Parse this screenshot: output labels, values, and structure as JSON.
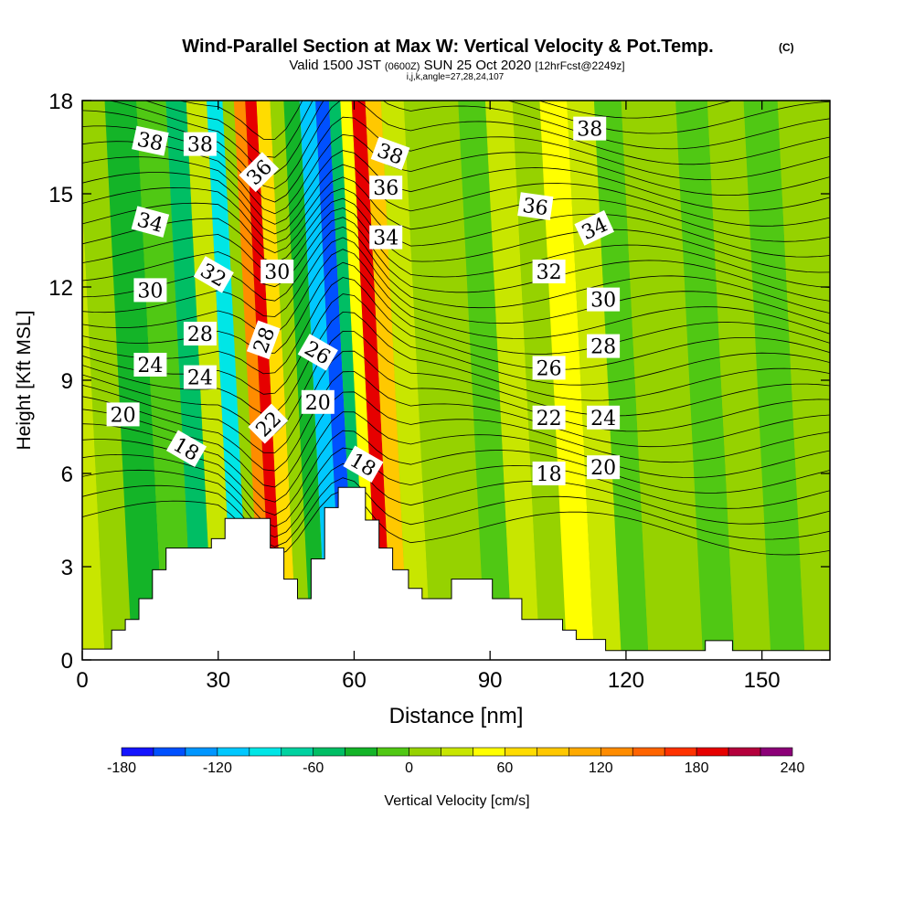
{
  "chart_data": {
    "type": "heatmap",
    "title": "Wind-Parallel Section at Max W: Vertical Velocity & Pot.Temp.",
    "title_unit": "(C)",
    "subtitle_main": "Valid 1500 JST",
    "subtitle_utc": "(0600Z)",
    "subtitle_date": "SUN 25 Oct 2020",
    "subtitle_fcst": "[12hrFcst@2249z]",
    "subtitle_line2": "i,j,k,angle=27,28,24,107",
    "xlabel": "Distance [nm]",
    "ylabel": "Height [Kft MSL]",
    "xlim": [
      0,
      165
    ],
    "ylim": [
      0,
      18
    ],
    "xticks": [
      "0",
      "30",
      "60",
      "90",
      "120",
      "150"
    ],
    "xtick_values": [
      0,
      30,
      60,
      90,
      120,
      150
    ],
    "yticks": [
      "0",
      "3",
      "6",
      "9",
      "12",
      "15",
      "18"
    ],
    "ytick_values": [
      0,
      3,
      6,
      9,
      12,
      15,
      18
    ],
    "colorbar_label": "Vertical Velocity [cm/s]",
    "colorbar_range": [
      -180,
      240
    ],
    "colorbar_step": 20,
    "colorbar_ticks": [
      "-180",
      "-120",
      "-60",
      "0",
      "60",
      "120",
      "180",
      "240"
    ],
    "colorbar_tick_values": [
      -180,
      -120,
      -60,
      0,
      60,
      120,
      180,
      240
    ],
    "colorbar_colors": [
      "#1414ff",
      "#0050ff",
      "#0096ff",
      "#00c8ff",
      "#00e6e6",
      "#00d2a0",
      "#00be64",
      "#14b428",
      "#50c814",
      "#96d200",
      "#c8e600",
      "#ffff00",
      "#ffdc00",
      "#ffc800",
      "#ffaa00",
      "#ff8c00",
      "#ff6400",
      "#ff3200",
      "#e60000",
      "#b4003c",
      "#8c0078"
    ],
    "terrain": [
      [
        0,
        0.35
      ],
      [
        6.5,
        0.35
      ],
      [
        6.5,
        0.96
      ],
      [
        9.5,
        0.96
      ],
      [
        9.5,
        1.3
      ],
      [
        12.5,
        1.3
      ],
      [
        12.5,
        1.97
      ],
      [
        15.5,
        1.97
      ],
      [
        15.5,
        2.9
      ],
      [
        18.5,
        2.9
      ],
      [
        18.5,
        3.6
      ],
      [
        28.5,
        3.6
      ],
      [
        28.5,
        3.9
      ],
      [
        31.5,
        3.9
      ],
      [
        31.5,
        4.55
      ],
      [
        41.5,
        4.55
      ],
      [
        41.5,
        3.6
      ],
      [
        44.5,
        3.6
      ],
      [
        44.5,
        2.6
      ],
      [
        47.5,
        2.6
      ],
      [
        47.5,
        1.97
      ],
      [
        50.5,
        1.97
      ],
      [
        50.5,
        3.25
      ],
      [
        53.5,
        3.25
      ],
      [
        53.5,
        4.9
      ],
      [
        56.5,
        4.9
      ],
      [
        56.5,
        5.55
      ],
      [
        62.5,
        5.55
      ],
      [
        62.5,
        4.5
      ],
      [
        65.5,
        4.5
      ],
      [
        65.5,
        3.6
      ],
      [
        68.5,
        3.6
      ],
      [
        68.5,
        2.9
      ],
      [
        72,
        2.9
      ],
      [
        72,
        2.3
      ],
      [
        75,
        2.3
      ],
      [
        75,
        1.97
      ],
      [
        81.5,
        1.97
      ],
      [
        81.5,
        2.6
      ],
      [
        90.5,
        2.6
      ],
      [
        90.5,
        1.97
      ],
      [
        97,
        1.97
      ],
      [
        97,
        1.3
      ],
      [
        106,
        1.3
      ],
      [
        106,
        0.96
      ],
      [
        109,
        0.96
      ],
      [
        109,
        0.66
      ],
      [
        115.5,
        0.66
      ],
      [
        115.5,
        0.3
      ],
      [
        137.5,
        0.3
      ],
      [
        137.5,
        0.62
      ],
      [
        143.5,
        0.62
      ],
      [
        143.5,
        0.3
      ],
      [
        165,
        0.3
      ]
    ],
    "w_columns": [
      {
        "x": 2,
        "w": 35
      },
      {
        "x": 8,
        "w": 0
      },
      {
        "x": 14,
        "w": -30
      },
      {
        "x": 22,
        "w": -10
      },
      {
        "x": 27,
        "w": -50
      },
      {
        "x": 31,
        "w": 30
      },
      {
        "x": 36,
        "w": -90
      },
      {
        "x": 38,
        "w": 10
      },
      {
        "x": 41,
        "w": 130
      },
      {
        "x": 43,
        "w": 190
      },
      {
        "x": 46,
        "w": 60
      },
      {
        "x": 49,
        "w": 10
      },
      {
        "x": 52,
        "w": -40
      },
      {
        "x": 56,
        "w": -110
      },
      {
        "x": 59,
        "w": -150
      },
      {
        "x": 62,
        "w": -60
      },
      {
        "x": 64,
        "w": 40
      },
      {
        "x": 67,
        "w": 190
      },
      {
        "x": 70,
        "w": 80
      },
      {
        "x": 74,
        "w": 20
      },
      {
        "x": 80,
        "w": 0
      },
      {
        "x": 86,
        "w": 10
      },
      {
        "x": 92,
        "w": -10
      },
      {
        "x": 98,
        "w": 20
      },
      {
        "x": 104,
        "w": 0
      },
      {
        "x": 110,
        "w": 50
      },
      {
        "x": 116,
        "w": 30
      },
      {
        "x": 122,
        "w": -20
      },
      {
        "x": 128,
        "w": 0
      },
      {
        "x": 134,
        "w": 15
      },
      {
        "x": 140,
        "w": -10
      },
      {
        "x": 148,
        "w": 10
      },
      {
        "x": 156,
        "w": -15
      },
      {
        "x": 163,
        "w": 10
      }
    ],
    "contour_labels": [
      {
        "text": "38",
        "x": 15,
        "y": 16.7,
        "angle": 12
      },
      {
        "text": "38",
        "x": 26,
        "y": 16.6,
        "angle": 0
      },
      {
        "text": "36",
        "x": 39,
        "y": 15.7,
        "angle": -45
      },
      {
        "text": "38",
        "x": 68,
        "y": 16.3,
        "angle": 20
      },
      {
        "text": "36",
        "x": 67,
        "y": 15.2,
        "angle": 0
      },
      {
        "text": "34",
        "x": 67,
        "y": 13.6,
        "angle": 0
      },
      {
        "text": "38",
        "x": 112,
        "y": 17.1,
        "angle": 0
      },
      {
        "text": "36",
        "x": 100,
        "y": 14.6,
        "angle": 8
      },
      {
        "text": "34",
        "x": 113,
        "y": 13.9,
        "angle": -25
      },
      {
        "text": "34",
        "x": 15,
        "y": 14.1,
        "angle": 15
      },
      {
        "text": "32",
        "x": 29,
        "y": 12.4,
        "angle": 30
      },
      {
        "text": "30",
        "x": 43,
        "y": 12.5,
        "angle": 0
      },
      {
        "text": "32",
        "x": 103,
        "y": 12.5,
        "angle": 0
      },
      {
        "text": "30",
        "x": 15,
        "y": 11.9,
        "angle": 0
      },
      {
        "text": "30",
        "x": 115,
        "y": 11.6,
        "angle": 0
      },
      {
        "text": "28",
        "x": 26,
        "y": 10.5,
        "angle": 0
      },
      {
        "text": "28",
        "x": 40,
        "y": 10.3,
        "angle": -70
      },
      {
        "text": "26",
        "x": 52,
        "y": 9.9,
        "angle": 30
      },
      {
        "text": "28",
        "x": 115,
        "y": 10.1,
        "angle": 0
      },
      {
        "text": "24",
        "x": 15,
        "y": 9.5,
        "angle": 0
      },
      {
        "text": "24",
        "x": 26,
        "y": 9.1,
        "angle": 0
      },
      {
        "text": "26",
        "x": 103,
        "y": 9.4,
        "angle": 0
      },
      {
        "text": "20",
        "x": 52,
        "y": 8.3,
        "angle": 0
      },
      {
        "text": "20",
        "x": 9,
        "y": 7.9,
        "angle": 0
      },
      {
        "text": "22",
        "x": 41,
        "y": 7.6,
        "angle": -45
      },
      {
        "text": "22",
        "x": 103,
        "y": 7.8,
        "angle": 0
      },
      {
        "text": "24",
        "x": 115,
        "y": 7.8,
        "angle": 0
      },
      {
        "text": "18",
        "x": 23,
        "y": 6.8,
        "angle": 30
      },
      {
        "text": "18",
        "x": 62,
        "y": 6.3,
        "angle": 30
      },
      {
        "text": "18",
        "x": 103,
        "y": 6.0,
        "angle": 0
      },
      {
        "text": "20",
        "x": 115,
        "y": 6.2,
        "angle": 0
      }
    ]
  }
}
